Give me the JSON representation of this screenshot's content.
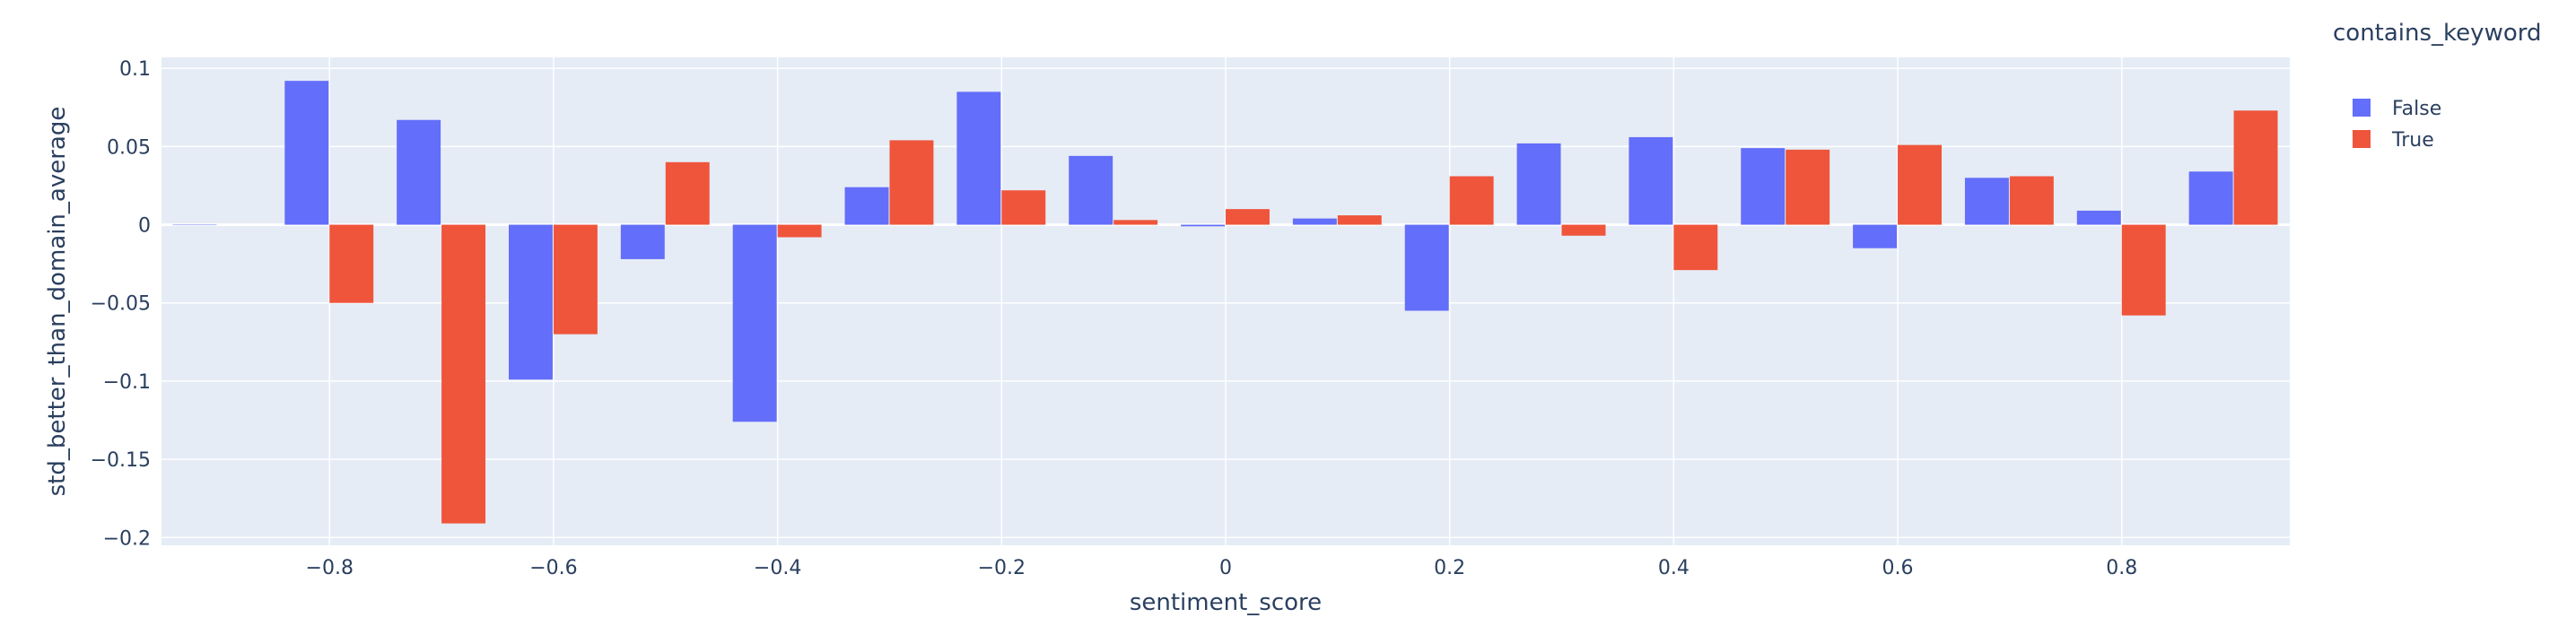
{
  "chart_data": {
    "type": "bar",
    "barmode": "group",
    "xlabel": "sentiment_score",
    "ylabel": "std_better_than_domain_average",
    "xlim": [
      -0.95,
      0.95
    ],
    "ylim": [
      -0.205,
      0.107
    ],
    "x_ticks": [
      -0.8,
      -0.6,
      -0.4,
      -0.2,
      0,
      0.2,
      0.4,
      0.6,
      0.8
    ],
    "x_tick_labels": [
      "−0.8",
      "−0.6",
      "−0.4",
      "−0.2",
      "0",
      "0.2",
      "0.4",
      "0.6",
      "0.8"
    ],
    "y_ticks": [
      0.1,
      0.05,
      0,
      -0.05,
      -0.1,
      -0.15,
      -0.2
    ],
    "y_tick_labels": [
      "0.1",
      "0.05",
      "0",
      "−0.05",
      "−0.1",
      "−0.15",
      "−0.2"
    ],
    "grid": true,
    "legend": {
      "title": "contains_keyword",
      "position": "top-right"
    },
    "x": [
      -0.9,
      -0.8,
      -0.7,
      -0.6,
      -0.5,
      -0.4,
      -0.3,
      -0.2,
      -0.1,
      0.0,
      0.1,
      0.2,
      0.3,
      0.4,
      0.5,
      0.6,
      0.7,
      0.8,
      0.9
    ],
    "series": [
      {
        "name": "False",
        "color": "#636efa",
        "values": [
          0.0,
          0.092,
          0.067,
          -0.099,
          -0.022,
          -0.126,
          0.024,
          0.085,
          0.044,
          -0.001,
          0.004,
          -0.055,
          0.052,
          0.056,
          0.049,
          -0.015,
          0.03,
          0.009,
          0.034
        ]
      },
      {
        "name": "True",
        "color": "#ef553b",
        "values": [
          null,
          -0.05,
          -0.191,
          -0.07,
          0.04,
          -0.008,
          0.054,
          0.022,
          0.003,
          0.01,
          0.006,
          0.031,
          -0.007,
          -0.029,
          0.048,
          0.051,
          0.031,
          -0.058,
          0.073
        ]
      }
    ]
  },
  "colors": {
    "plot_background": "#e5ecf6",
    "grid": "#ffffff",
    "text": "#2a3f5f"
  }
}
